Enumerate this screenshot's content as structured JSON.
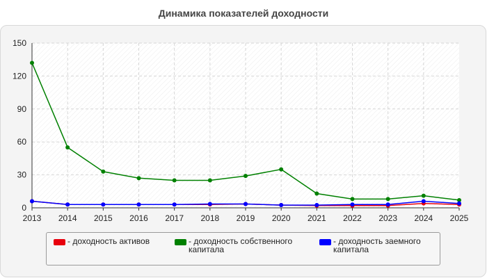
{
  "chart_data": {
    "type": "line",
    "title": "Динамика показателей доходности",
    "xlabel": "",
    "ylabel": "",
    "x": [
      "2013",
      "2014",
      "2015",
      "2016",
      "2017",
      "2018",
      "2019",
      "2020",
      "2021",
      "2022",
      "2023",
      "2024",
      "2025"
    ],
    "ylim": [
      0,
      150
    ],
    "yticks": [
      "0",
      "30",
      "60",
      "90",
      "120",
      "150"
    ],
    "grid": true,
    "legend_position": "bottom",
    "series": [
      {
        "name": "- доходность активов",
        "color": "#e8000d",
        "values": [
          6,
          3,
          3,
          3,
          3,
          3,
          3.5,
          2.5,
          2,
          2,
          2,
          4,
          3
        ]
      },
      {
        "name": "- доходность собственного капитала",
        "color": "#008000",
        "values": [
          132,
          55,
          33,
          27,
          25,
          25,
          29,
          35,
          13,
          8,
          8,
          11,
          7
        ]
      },
      {
        "name": "- доходность заемного капитала",
        "color": "#0000ff",
        "values": [
          6,
          3,
          3,
          3,
          3,
          3.5,
          3.5,
          2.5,
          2.5,
          3,
          3,
          6,
          4
        ]
      }
    ]
  }
}
